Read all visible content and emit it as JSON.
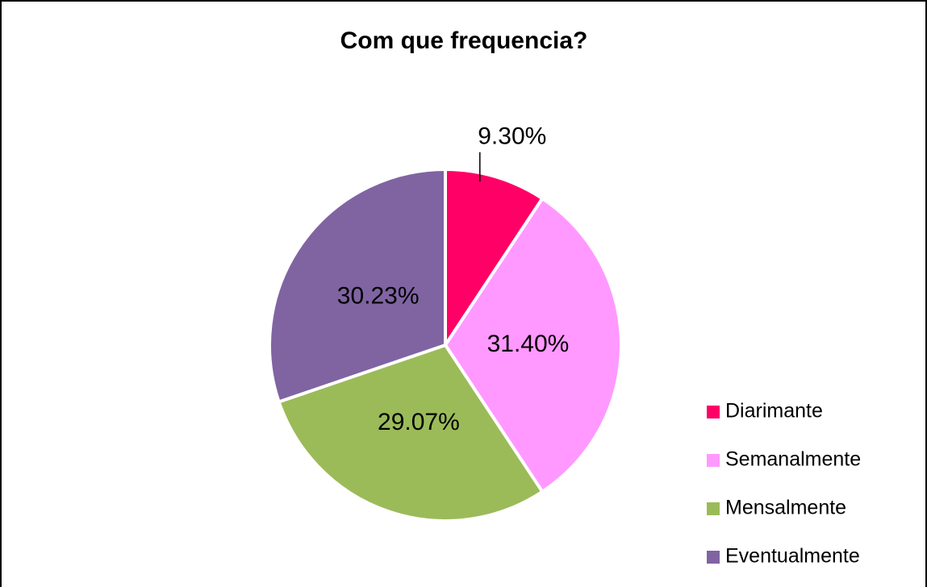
{
  "chart_data": {
    "type": "pie",
    "title": "Com que frequencia?",
    "categories": [
      "Diarimante",
      "Semanalmente",
      "Mensalmente",
      "Eventualmente"
    ],
    "values": [
      9.3,
      31.4,
      29.07,
      30.23
    ],
    "value_labels": [
      "9.30%",
      "31.40%",
      "29.07%",
      "30.23%"
    ],
    "colors": [
      "#ff0066",
      "#ff99ff",
      "#9bbb59",
      "#8064a2"
    ],
    "legend": "right"
  }
}
